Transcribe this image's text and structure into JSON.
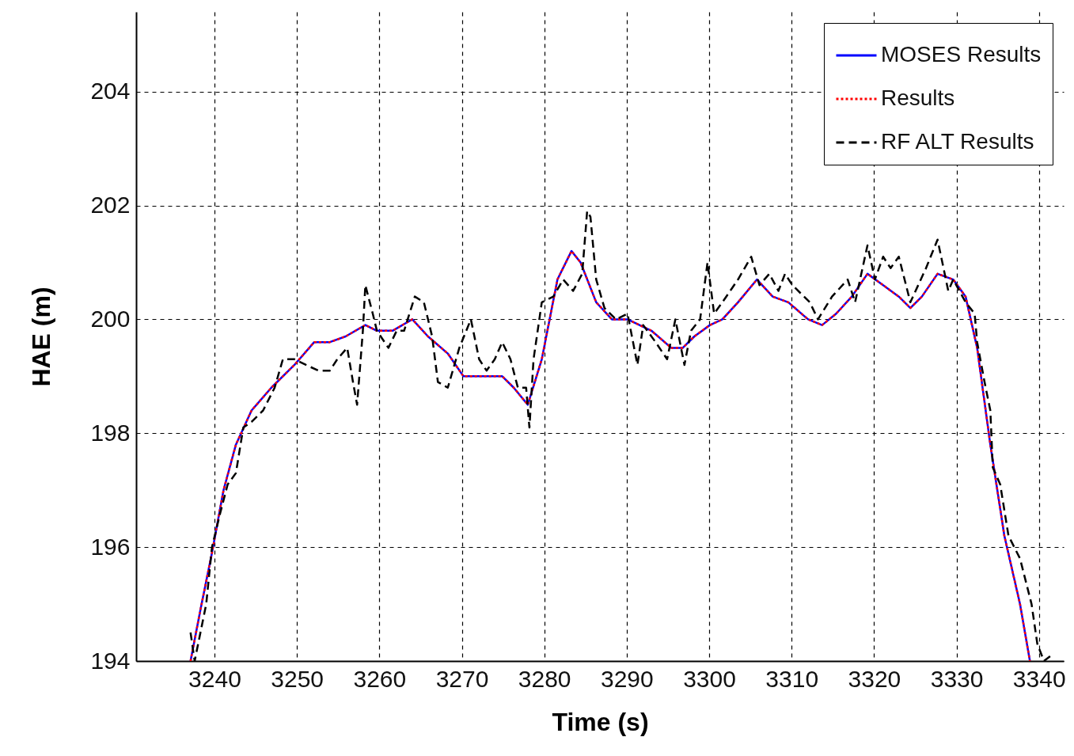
{
  "chart_data": {
    "type": "line",
    "xlabel": "Time (s)",
    "ylabel": "HAE (m)",
    "xlim": [
      3230.5,
      3343
    ],
    "ylim": [
      194,
      205.4
    ],
    "xticks": [
      3240,
      3250,
      3260,
      3270,
      3280,
      3290,
      3300,
      3310,
      3320,
      3330,
      3340
    ],
    "yticks": [
      194,
      196,
      198,
      200,
      202,
      204
    ],
    "grid": true,
    "legend": "top right",
    "series": [
      {
        "name": "MOSES Results",
        "color": "#0000ff",
        "line_style": "solid",
        "x": [
          3237.1,
          3238.3,
          3239.7,
          3241.1,
          3242.6,
          3244.5,
          3246.9,
          3249.7,
          3252.1,
          3254.0,
          3255.9,
          3258.3,
          3259.7,
          3261.6,
          3264.0,
          3265.9,
          3268.3,
          3270.2,
          3272.5,
          3274.9,
          3276.3,
          3278.0,
          3279.7,
          3281.6,
          3283.3,
          3284.4,
          3286.3,
          3288.2,
          3290.1,
          3293.0,
          3295.4,
          3296.8,
          3298.2,
          3300.1,
          3301.6,
          3303.5,
          3305.8,
          3307.7,
          3309.6,
          3312.0,
          3313.7,
          3315.4,
          3317.3,
          3319.2,
          3321.1,
          3323.0,
          3324.4,
          3325.8,
          3327.7,
          3329.6,
          3331.1,
          3332.5,
          3334.1,
          3335.8,
          3337.7,
          3338.9
        ],
        "values": [
          194.0,
          194.9,
          195.9,
          197.0,
          197.8,
          198.4,
          198.8,
          199.2,
          199.6,
          199.6,
          199.7,
          199.9,
          199.8,
          199.8,
          200.0,
          199.7,
          199.4,
          199.0,
          199.0,
          199.0,
          198.8,
          198.5,
          199.3,
          200.7,
          201.2,
          201.0,
          200.3,
          200.0,
          200.0,
          199.8,
          199.5,
          199.5,
          199.7,
          199.9,
          200.0,
          200.3,
          200.7,
          200.4,
          200.3,
          200.0,
          199.9,
          200.1,
          200.4,
          200.8,
          200.6,
          200.4,
          200.2,
          200.4,
          200.8,
          200.7,
          200.4,
          199.5,
          197.8,
          196.2,
          195.0,
          194.0
        ]
      },
      {
        "name": "Results",
        "color": "#ff0000",
        "line_style": "dotted",
        "x": [
          3237.1,
          3238.3,
          3239.7,
          3241.1,
          3242.6,
          3244.5,
          3246.9,
          3249.7,
          3252.1,
          3254.0,
          3255.9,
          3258.3,
          3259.7,
          3261.6,
          3264.0,
          3265.9,
          3268.3,
          3270.2,
          3272.5,
          3274.9,
          3276.3,
          3278.0,
          3279.7,
          3281.6,
          3283.3,
          3284.4,
          3286.3,
          3288.2,
          3290.1,
          3293.0,
          3295.4,
          3296.8,
          3298.2,
          3300.1,
          3301.6,
          3303.5,
          3305.8,
          3307.7,
          3309.6,
          3312.0,
          3313.7,
          3315.4,
          3317.3,
          3319.2,
          3321.1,
          3323.0,
          3324.4,
          3325.8,
          3327.7,
          3329.6,
          3331.1,
          3332.5,
          3334.1,
          3335.8,
          3337.7,
          3338.9
        ],
        "values": [
          194.0,
          194.9,
          195.9,
          197.0,
          197.8,
          198.4,
          198.8,
          199.2,
          199.6,
          199.6,
          199.7,
          199.9,
          199.8,
          199.8,
          200.0,
          199.7,
          199.4,
          199.0,
          199.0,
          199.0,
          198.8,
          198.5,
          199.3,
          200.7,
          201.2,
          201.0,
          200.3,
          200.0,
          200.0,
          199.8,
          199.5,
          199.5,
          199.7,
          199.9,
          200.0,
          200.3,
          200.7,
          200.4,
          200.3,
          200.0,
          199.9,
          200.1,
          200.4,
          200.8,
          200.6,
          200.4,
          200.2,
          200.4,
          200.8,
          200.7,
          200.4,
          199.5,
          197.8,
          196.2,
          195.0,
          194.0
        ]
      },
      {
        "name": "RF ALT Results",
        "color": "#000000",
        "line_style": "dashed",
        "x": [
          3237.1,
          3237.6,
          3238.3,
          3239.0,
          3239.7,
          3240.7,
          3241.6,
          3242.6,
          3243.5,
          3244.5,
          3245.9,
          3247.3,
          3248.3,
          3249.7,
          3251.1,
          3252.6,
          3254.0,
          3254.9,
          3256.1,
          3256.8,
          3257.3,
          3258.0,
          3258.3,
          3259.2,
          3259.7,
          3261.1,
          3262.1,
          3263.0,
          3264.3,
          3265.4,
          3266.4,
          3267.1,
          3268.3,
          3269.7,
          3271.1,
          3272.1,
          3273.0,
          3274.0,
          3274.9,
          3275.9,
          3276.8,
          3277.8,
          3278.2,
          3278.7,
          3279.7,
          3281.1,
          3282.3,
          3283.5,
          3284.6,
          3285.2,
          3285.6,
          3286.3,
          3287.3,
          3288.7,
          3290.1,
          3291.3,
          3292.0,
          3293.5,
          3294.9,
          3295.9,
          3297.0,
          3297.8,
          3298.9,
          3299.8,
          3300.6,
          3301.6,
          3303.5,
          3305.1,
          3306.1,
          3307.3,
          3308.4,
          3309.2,
          3310.1,
          3312.2,
          3313.2,
          3314.9,
          3316.8,
          3317.7,
          3319.2,
          3320.1,
          3321.1,
          3322.0,
          3323.0,
          3324.4,
          3326.3,
          3327.7,
          3329.0,
          3329.6,
          3331.1,
          3332.2,
          3332.5,
          3333.4,
          3334.1,
          3334.4,
          3335.3,
          3336.3,
          3337.7,
          3339.1,
          3339.8,
          3340.6,
          3341.5
        ],
        "values": [
          194.5,
          194.0,
          194.5,
          195.0,
          196.0,
          196.6,
          197.1,
          197.3,
          198.1,
          198.2,
          198.4,
          198.8,
          199.3,
          199.3,
          199.2,
          199.1,
          199.1,
          199.3,
          199.5,
          198.9,
          198.5,
          199.8,
          200.6,
          200.1,
          199.8,
          199.5,
          199.8,
          199.8,
          200.4,
          200.3,
          199.7,
          198.9,
          198.8,
          199.5,
          200.0,
          199.3,
          199.1,
          199.3,
          199.6,
          199.3,
          198.8,
          198.8,
          198.1,
          199.3,
          200.3,
          200.4,
          200.7,
          200.5,
          200.8,
          201.9,
          201.8,
          200.7,
          200.2,
          200.0,
          200.1,
          199.2,
          199.9,
          199.6,
          199.3,
          200.0,
          199.2,
          199.8,
          200.0,
          201.0,
          200.1,
          200.3,
          200.7,
          201.1,
          200.6,
          200.8,
          200.5,
          200.8,
          200.6,
          200.3,
          200.0,
          200.4,
          200.7,
          200.3,
          201.3,
          200.7,
          201.1,
          200.9,
          201.1,
          200.3,
          200.9,
          201.4,
          200.5,
          200.7,
          200.3,
          200.1,
          199.6,
          198.9,
          198.4,
          197.4,
          197.1,
          196.2,
          195.8,
          195.0,
          194.3,
          194.0,
          194.1
        ]
      }
    ]
  }
}
